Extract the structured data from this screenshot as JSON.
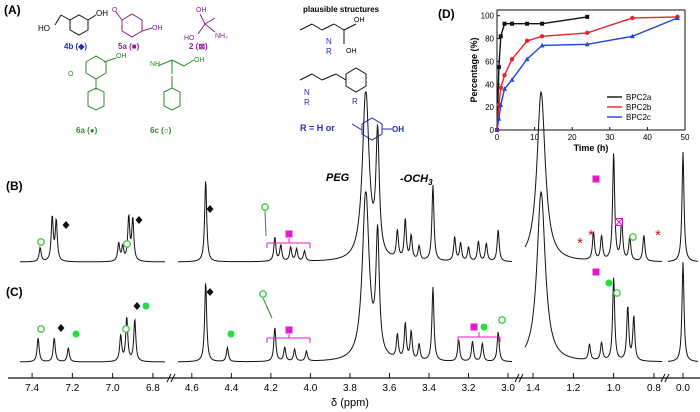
{
  "panels": {
    "a": "(A)",
    "b": "(B)",
    "c": "(C)",
    "d": "(D)"
  },
  "structures": {
    "c4b_label": "4b (◆)",
    "c5a_label": "5a (■)",
    "c2_label": "2 (⊠)",
    "c6a_label": "6a (●)",
    "c6c_label": "6c (○)",
    "plausible_title": "plausible structures",
    "r_def": "R = H or",
    "atoms": {
      "OH": "OH",
      "NH2": "NH₂",
      "N": "N",
      "NH": "NH",
      "O": "O",
      "R": "R",
      "HO": "HO"
    }
  },
  "colors": {
    "purple": "#8b1f8f",
    "green": "#2e8b2e",
    "blue": "#1f2fb0",
    "magenta": "#e619c8",
    "bright_green": "#22dd44",
    "red_star": "#cc1111",
    "bpc2a": "#111111",
    "bpc2b": "#e8232b",
    "bpc2c": "#2040e0"
  },
  "spectrum": {
    "xlabel": "δ (ppm)",
    "ticks": [
      "7.4",
      "7.2",
      "7.0",
      "6.8",
      "4.6",
      "4.4",
      "4.2",
      "4.0",
      "3.8",
      "3.6",
      "3.4",
      "3.2",
      "3.0",
      "1.4",
      "1.2",
      "1.0",
      "0.8",
      "0.0"
    ],
    "annotations": {
      "peg": "PEG",
      "och3": "-OCH",
      "och3_sub": "3"
    }
  },
  "chart_data": {
    "type": "line",
    "title": "",
    "xlabel": "Time (h)",
    "ylabel": "Percentage (%)",
    "xlim": [
      0,
      50
    ],
    "ylim": [
      0,
      105
    ],
    "xticks": [
      "0",
      "10",
      "20",
      "30",
      "40",
      "50"
    ],
    "yticks": [
      "0",
      "20",
      "40",
      "60",
      "80",
      "100"
    ],
    "legend_position": "bottom-right",
    "series": [
      {
        "name": "BPC2a",
        "x": [
          0,
          0.5,
          1,
          2,
          4,
          8,
          12,
          24
        ],
        "y": [
          0,
          55,
          82,
          93,
          93,
          93,
          93,
          99
        ]
      },
      {
        "name": "BPC2b",
        "x": [
          0,
          0.5,
          1,
          2,
          4,
          8,
          12,
          24,
          36,
          48
        ],
        "y": [
          0,
          22,
          37,
          48,
          62,
          78,
          82,
          85,
          98,
          99
        ]
      },
      {
        "name": "BPC2c",
        "x": [
          0,
          0.5,
          1,
          2,
          4,
          8,
          12,
          24,
          36,
          48
        ],
        "y": [
          0,
          10,
          22,
          36,
          44,
          62,
          74,
          75,
          82,
          98
        ]
      }
    ]
  }
}
